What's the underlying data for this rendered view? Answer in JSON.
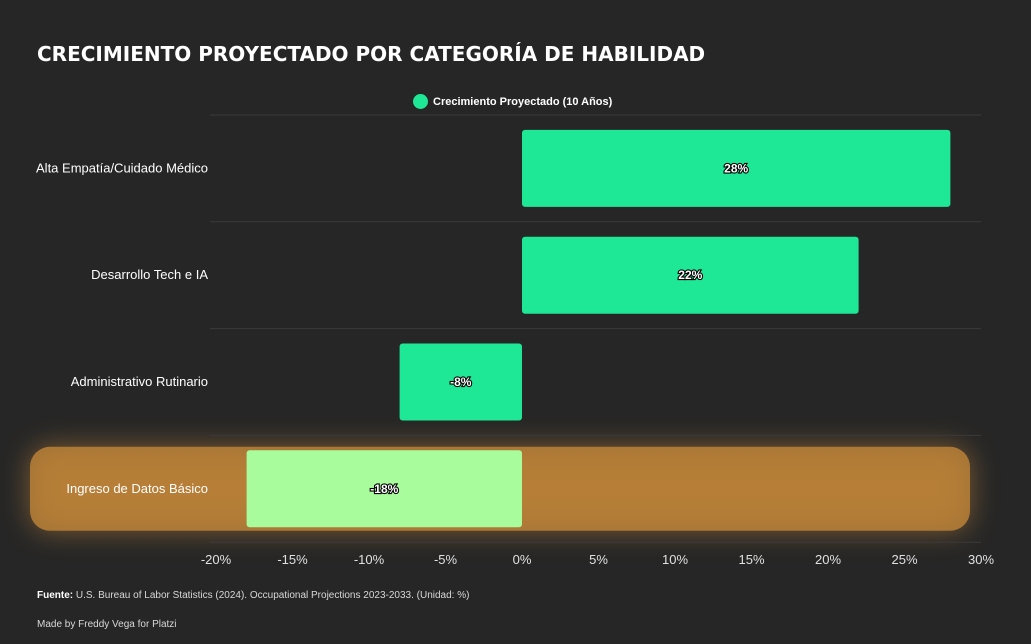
{
  "title": "CRECIMIENTO PROYECTADO POR CATEGORÍA DE HABILIDAD",
  "legend_label": "Crecimiento Proyectado (10 Años)",
  "footer": {
    "source_label": "Fuente:",
    "source_text": "U.S. Bureau of Labor Statistics (2024). Occupational Projections 2023-2033. (Unidad: %)",
    "credit": "Made by Freddy Vega for Platzi"
  },
  "colors": {
    "positive": "#1ee896",
    "negative_moderate": "#1ee896",
    "negative_strong": "#a8fc9c",
    "highlight_glow": "#c88a3a",
    "background": "#262626"
  },
  "chart_data": {
    "type": "bar",
    "orientation": "horizontal",
    "title": "CRECIMIENTO PROYECTADO POR CATEGORÍA DE HABILIDAD",
    "categories": [
      "Alta Empatía/Cuidado Médico",
      "Desarrollo Tech e IA",
      "Administrativo Rutinario",
      "Ingreso de Datos Básico"
    ],
    "series": [
      {
        "name": "Crecimiento Proyectado (10 Años)",
        "values": [
          28,
          22,
          -8,
          -18
        ]
      }
    ],
    "data_labels": [
      "28%",
      "22%",
      "-8%",
      "-18%"
    ],
    "xlim": [
      -20,
      30
    ],
    "xticks": [
      -20,
      -15,
      -10,
      -5,
      0,
      5,
      10,
      15,
      20,
      25,
      30
    ],
    "xtick_labels": [
      "-20%",
      "-15%",
      "-10%",
      "-5%",
      "0%",
      "5%",
      "10%",
      "15%",
      "20%",
      "25%",
      "30%"
    ],
    "highlighted_category": "Ingreso de Datos Básico",
    "legend": "top-center",
    "grid": "horizontal separators"
  }
}
